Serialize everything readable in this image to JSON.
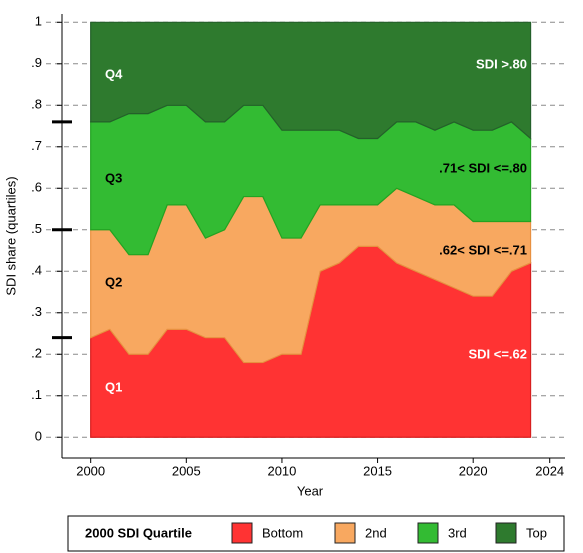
{
  "chart_data": {
    "type": "stacked-area",
    "x_label": "Year",
    "y_label": "SDI share (quartiles)",
    "x": [
      2000,
      2001,
      2002,
      2003,
      2004,
      2005,
      2006,
      2007,
      2008,
      2009,
      2010,
      2011,
      2012,
      2013,
      2014,
      2015,
      2016,
      2017,
      2018,
      2019,
      2020,
      2021,
      2022,
      2023
    ],
    "series": [
      {
        "name": "Bottom",
        "color": "#ff3333",
        "values": [
          0.24,
          0.26,
          0.2,
          0.2,
          0.26,
          0.26,
          0.24,
          0.24,
          0.18,
          0.18,
          0.2,
          0.2,
          0.4,
          0.42,
          0.46,
          0.46,
          0.42,
          0.4,
          0.38,
          0.36,
          0.34,
          0.34,
          0.4,
          0.42
        ]
      },
      {
        "name": "2nd",
        "color": "#f8a860",
        "values": [
          0.26,
          0.24,
          0.24,
          0.24,
          0.3,
          0.3,
          0.24,
          0.26,
          0.4,
          0.4,
          0.28,
          0.28,
          0.16,
          0.14,
          0.1,
          0.1,
          0.18,
          0.18,
          0.18,
          0.2,
          0.18,
          0.18,
          0.12,
          0.1
        ]
      },
      {
        "name": "3rd",
        "color": "#33bb33",
        "values": [
          0.26,
          0.26,
          0.34,
          0.34,
          0.24,
          0.24,
          0.28,
          0.26,
          0.22,
          0.22,
          0.26,
          0.26,
          0.18,
          0.18,
          0.16,
          0.16,
          0.16,
          0.18,
          0.18,
          0.2,
          0.22,
          0.22,
          0.24,
          0.2
        ]
      },
      {
        "name": "Top",
        "color": "#2e7a2e",
        "values": [
          0.24,
          0.24,
          0.22,
          0.22,
          0.2,
          0.2,
          0.24,
          0.24,
          0.2,
          0.2,
          0.26,
          0.26,
          0.26,
          0.26,
          0.28,
          0.28,
          0.24,
          0.24,
          0.26,
          0.24,
          0.26,
          0.26,
          0.24,
          0.28
        ]
      }
    ],
    "legend_title": "2000 SDI Quartile",
    "annotations": [
      "Q4",
      "Q3",
      "Q2",
      "Q1",
      "SDI >.80",
      ".71< SDI <=.80",
      ".62< SDI <=.71",
      "SDI <=.62"
    ],
    "markers": [
      0.24,
      0.5,
      0.76
    ],
    "xlim": [
      1998.5,
      2024.8
    ],
    "xticks": [
      2000,
      2005,
      2010,
      2015,
      2020,
      2024
    ],
    "ylim": [
      -0.05,
      1.02
    ],
    "yticks": [
      0,
      {
        "value": 0.1,
        "label": ".1"
      },
      {
        "value": 0.2,
        "label": ".2"
      },
      {
        "value": 0.3,
        "label": ".3"
      },
      {
        "value": 0.4,
        "label": ".4"
      },
      {
        "value": 0.5,
        "label": ".5"
      },
      {
        "value": 0.6,
        "label": ".6"
      },
      {
        "value": 0.7,
        "label": ".7"
      },
      {
        "value": 0.8,
        "label": ".8"
      },
      {
        "value": 0.9,
        "label": ".9"
      },
      1
    ],
    "grid": true
  }
}
